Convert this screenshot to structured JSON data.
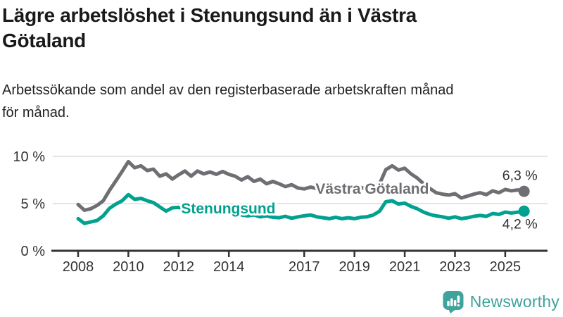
{
  "header": {
    "title": "Lägre arbetslöshet i Stenungsund än i Västra\nGötaland",
    "subtitle": "Arbetssökande som andel av den registerbaserade arbetskraften månad\nför månad."
  },
  "footer": {
    "brand": "Newsworthy",
    "brand_color": "#3fa29c",
    "logo_icon": "bar-chart-speech-bubble-icon"
  },
  "chart_data": {
    "type": "line",
    "title": "Lägre arbetslöshet i Stenungsund än i Västra Götaland",
    "subtitle": "Arbetssökande som andel av den registerbaserade arbetskraften månad för månad.",
    "grid": "horizontal",
    "legend_position": "inline-labels",
    "style": {
      "grid_color": "#dcdcdc",
      "axis_color": "#333333",
      "axis_text_color": "#333333",
      "annotation_color": "#333333",
      "background": "#ffffff"
    },
    "x_axis": {
      "unit": "year",
      "start": 2008.0,
      "end": 2025.75,
      "ticks": [
        2008,
        2010,
        2012,
        2014,
        2017,
        2019,
        2021,
        2023,
        2025
      ],
      "labels": [
        "2008",
        "2010",
        "2012",
        "2014",
        "2017",
        "2019",
        "2021",
        "2023",
        "2025"
      ]
    },
    "y_axis": {
      "unit": "%",
      "range": [
        0,
        10.8
      ],
      "ticks": [
        0,
        5,
        10
      ],
      "labels": [
        "0 %",
        "5 %",
        "10 %"
      ]
    },
    "series": [
      {
        "name": "Västra Götaland",
        "color": "#6e6e73",
        "start": 2008.0,
        "step": 0.25,
        "end_value": 6.3,
        "end_label": "6,3 %",
        "end_label_offset": [
          19,
          -16
        ],
        "label_pos": {
          "t": 2017.45,
          "v": 6.6
        },
        "values": [
          4.9,
          4.3,
          4.45,
          4.8,
          5.3,
          6.4,
          7.4,
          8.4,
          9.45,
          8.8,
          9.0,
          8.5,
          8.65,
          7.9,
          8.15,
          7.6,
          8.05,
          8.45,
          7.9,
          8.45,
          8.15,
          8.35,
          8.1,
          8.4,
          8.1,
          7.9,
          7.5,
          7.85,
          7.35,
          7.6,
          7.1,
          7.35,
          7.1,
          6.8,
          7.0,
          6.65,
          6.55,
          6.75,
          6.6,
          6.75,
          6.6,
          6.75,
          6.55,
          6.7,
          6.6,
          6.7,
          6.55,
          6.75,
          7.1,
          8.6,
          9.0,
          8.55,
          8.75,
          8.15,
          7.7,
          7.1,
          6.6,
          6.15,
          6.0,
          5.9,
          6.05,
          5.6,
          5.8,
          6.0,
          6.15,
          5.95,
          6.35,
          6.15,
          6.5,
          6.35,
          6.45,
          6.3
        ]
      },
      {
        "name": "Stenungsund",
        "color": "#00a18f",
        "start": 2008.0,
        "step": 0.25,
        "end_value": 4.2,
        "end_label": "4,2 %",
        "end_label_offset": [
          19,
          25
        ],
        "label_pos": {
          "t": 2012.1,
          "v": 4.5
        },
        "values": [
          3.4,
          2.9,
          3.05,
          3.2,
          3.7,
          4.5,
          4.95,
          5.3,
          5.95,
          5.45,
          5.55,
          5.3,
          5.1,
          4.65,
          4.2,
          4.55,
          4.6,
          4.4,
          4.5,
          4.3,
          4.35,
          4.15,
          4.25,
          4.05,
          4.1,
          3.95,
          3.8,
          3.7,
          3.8,
          3.6,
          3.7,
          3.55,
          3.5,
          3.65,
          3.45,
          3.6,
          3.7,
          3.8,
          3.6,
          3.5,
          3.4,
          3.55,
          3.4,
          3.5,
          3.4,
          3.55,
          3.6,
          3.8,
          4.2,
          5.2,
          5.3,
          4.95,
          5.05,
          4.7,
          4.45,
          4.1,
          3.85,
          3.7,
          3.6,
          3.45,
          3.6,
          3.4,
          3.5,
          3.65,
          3.75,
          3.65,
          3.95,
          3.85,
          4.1,
          4.0,
          4.1,
          4.2
        ]
      }
    ]
  }
}
